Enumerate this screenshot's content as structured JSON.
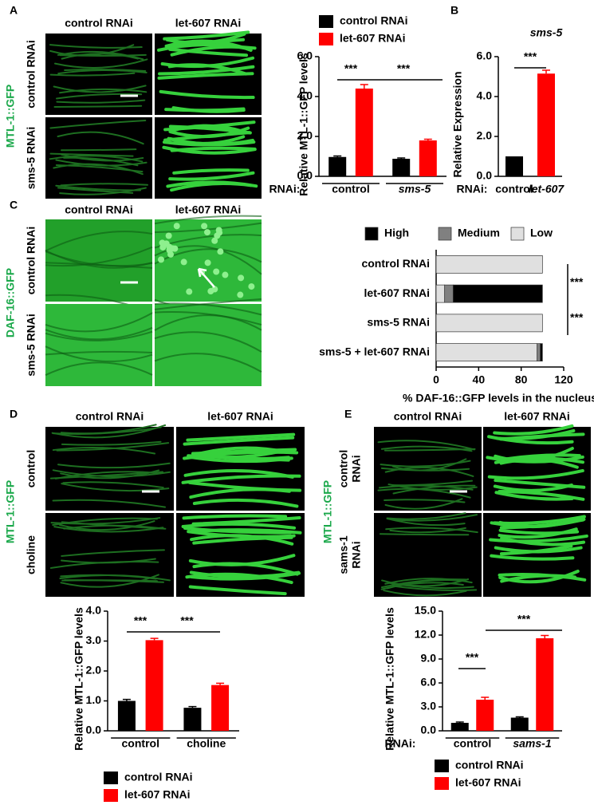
{
  "panel_labels": [
    "A",
    "B",
    "C",
    "D",
    "E"
  ],
  "images": [
    {
      "columns": [
        "control RNAi",
        "let-607 RNAi"
      ],
      "rows": [
        "control RNAi",
        "sms-5 RNAi"
      ],
      "reporter": "MTL-1::GFP"
    },
    {
      "columns": [
        "control RNAi",
        "let-607 RNAi"
      ],
      "rows": [
        "control RNAi",
        "sms-5 RNAi"
      ],
      "reporter": "DAF-16::GFP"
    },
    {
      "columns": [
        "control RNAi",
        "let-607 RNAi"
      ],
      "rows": [
        "control",
        "choline"
      ],
      "reporter": "MTL-1::GFP"
    },
    {
      "columns": [
        "control RNAi",
        "let-607 RNAi"
      ],
      "rows": [
        [
          "control",
          "RNAi"
        ],
        [
          "sams-1",
          "RNAi"
        ]
      ],
      "reporter": "MTL-1::GFP"
    }
  ],
  "chart_data": [
    {
      "type": "grouped_bar",
      "ylabel": "Relative MTL-1::GFP levels",
      "x_prefix": "RNAi:",
      "categories": [
        "control",
        "sms-5"
      ],
      "series": [
        {
          "name": "control RNAi",
          "color": "#000000",
          "values": [
            0.97,
            0.88
          ],
          "errors": [
            0.05,
            0.04
          ]
        },
        {
          "name": "let-607 RNAi",
          "color": "#ff0000",
          "values": [
            4.4,
            1.8
          ],
          "errors": [
            0.2,
            0.06
          ]
        }
      ],
      "ylim": [
        0,
        6
      ],
      "yticks": [
        {
          "value": 0,
          "label": "0.0"
        },
        {
          "value": 2,
          "label": "2.0"
        },
        {
          "value": 4,
          "label": "4.0"
        },
        {
          "value": 6,
          "label": "6.0"
        }
      ],
      "annotations": [
        "***",
        "***"
      ]
    },
    {
      "type": "bar",
      "title": "sms-5",
      "ylabel": "Relative Expression",
      "x_prefix": "RNAi:",
      "categories": [
        "control",
        "let-607"
      ],
      "values": [
        1.0,
        5.15
      ],
      "errors": [
        0,
        0.17
      ],
      "colors": [
        "#000000",
        "#ff0000"
      ],
      "ylim": [
        0,
        6
      ],
      "yticks": [
        {
          "value": 0,
          "label": "0.0"
        },
        {
          "value": 2,
          "label": "2.0"
        },
        {
          "value": 4,
          "label": "4.0"
        },
        {
          "value": 6,
          "label": "6.0"
        }
      ],
      "annotations": [
        "***"
      ]
    },
    {
      "type": "stacked_barh",
      "xlabel": "% DAF-16::GFP levels in the nucleus",
      "categories": [
        "control RNAi",
        "let-607 RNAi",
        "sms-5 RNAi",
        "sms-5 + let-607 RNAi"
      ],
      "series": [
        {
          "name": "High",
          "color": "#000000",
          "values": [
            0,
            84,
            0,
            2
          ]
        },
        {
          "name": "Medium",
          "color": "#808080",
          "values": [
            0,
            8,
            0,
            3
          ]
        },
        {
          "name": "Low",
          "color": "#e0e0e0",
          "values": [
            100,
            8,
            100,
            95
          ]
        }
      ],
      "xlim": [
        0,
        120
      ],
      "xticks": [
        0,
        40,
        80,
        120
      ],
      "annotations": [
        "***",
        "***"
      ]
    },
    {
      "type": "grouped_bar",
      "ylabel": "Relative MTL-1::GFP levels",
      "categories": [
        "control",
        "choline"
      ],
      "series": [
        {
          "name": "control RNAi",
          "color": "#000000",
          "values": [
            1.0,
            0.77
          ],
          "errors": [
            0.05,
            0.04
          ]
        },
        {
          "name": "let-607 RNAi",
          "color": "#ff0000",
          "values": [
            3.03,
            1.53
          ],
          "errors": [
            0.06,
            0.06
          ]
        }
      ],
      "ylim": [
        0,
        4
      ],
      "yticks": [
        {
          "value": 0,
          "label": "0.0"
        },
        {
          "value": 1,
          "label": "1.0"
        },
        {
          "value": 2,
          "label": "2.0"
        },
        {
          "value": 3,
          "label": "3.0"
        },
        {
          "value": 4,
          "label": "4.0"
        }
      ],
      "annotations": [
        "***",
        "***"
      ]
    },
    {
      "type": "grouped_bar",
      "ylabel": "Relative MTL-1::GFP levels",
      "x_prefix": "RNAi:",
      "categories": [
        "control",
        "sams-1"
      ],
      "series": [
        {
          "name": "control RNAi",
          "color": "#000000",
          "values": [
            1.0,
            1.65
          ],
          "errors": [
            0.1,
            0.1
          ]
        },
        {
          "name": "let-607 RNAi",
          "color": "#ff0000",
          "values": [
            3.9,
            11.6
          ],
          "errors": [
            0.3,
            0.35
          ]
        }
      ],
      "ylim": [
        0,
        15
      ],
      "yticks": [
        {
          "value": 0,
          "label": "0.0"
        },
        {
          "value": 3,
          "label": "3.0"
        },
        {
          "value": 6,
          "label": "6.0"
        },
        {
          "value": 9,
          "label": "9.0"
        },
        {
          "value": 12,
          "label": "12.0"
        },
        {
          "value": 15,
          "label": "15.0"
        }
      ],
      "annotations": [
        "***",
        "***"
      ]
    }
  ]
}
